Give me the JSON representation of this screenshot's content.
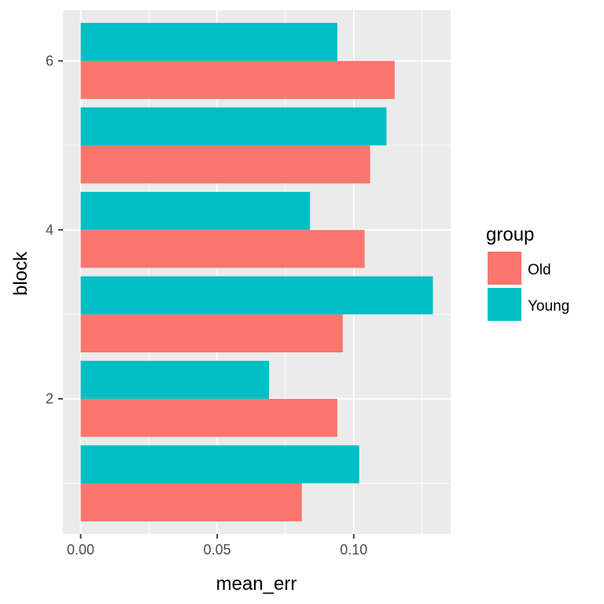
{
  "chart_data": {
    "type": "bar",
    "orientation": "horizontal",
    "xlabel": "mean_err",
    "ylabel": "block",
    "xlim": [
      -0.0065,
      0.1355
    ],
    "ylim": [
      0.4,
      6.6
    ],
    "x_ticks": [
      0.0,
      0.05,
      0.1
    ],
    "x_tick_labels": [
      "0.00",
      "0.05",
      "0.10"
    ],
    "y_ticks": [
      2,
      4,
      6
    ],
    "y_tick_labels": [
      "2",
      "4",
      "6"
    ],
    "categories": [
      1,
      2,
      3,
      4,
      5,
      6
    ],
    "series": [
      {
        "name": "Old",
        "color": "#F8766D",
        "values": [
          0.081,
          0.094,
          0.096,
          0.104,
          0.106,
          0.115
        ]
      },
      {
        "name": "Young",
        "color": "#00BFC4",
        "values": [
          0.102,
          0.069,
          0.129,
          0.084,
          0.112,
          0.094
        ]
      }
    ],
    "legend": {
      "title": "group",
      "position": "right"
    },
    "grid": true,
    "panel_background": "#EBEBEB"
  }
}
